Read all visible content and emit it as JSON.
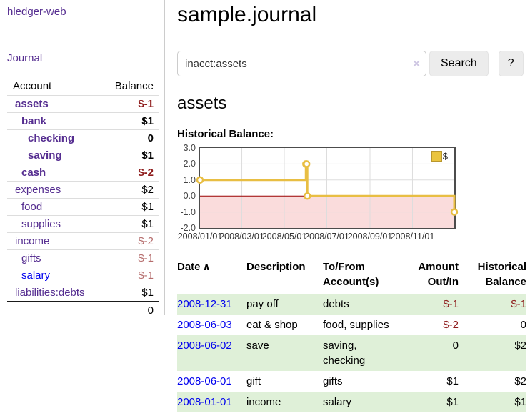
{
  "app": {
    "brand": "hledger-web",
    "nav": {
      "journal": "Journal"
    }
  },
  "sidebar": {
    "columns": {
      "account": "Account",
      "balance": "Balance"
    },
    "accounts": [
      {
        "name": "assets",
        "depth": 1,
        "bold": true,
        "balance": "$-1",
        "neg": "strong",
        "link": "purple"
      },
      {
        "name": "bank",
        "depth": 2,
        "bold": true,
        "balance": "$1",
        "neg": "",
        "link": "purple"
      },
      {
        "name": "checking",
        "depth": 3,
        "bold": true,
        "balance": "0",
        "neg": "",
        "link": "purple"
      },
      {
        "name": "saving",
        "depth": 3,
        "bold": true,
        "balance": "$1",
        "neg": "",
        "link": "purple"
      },
      {
        "name": "cash",
        "depth": 2,
        "bold": true,
        "balance": "$-2",
        "neg": "strong",
        "link": "purple"
      },
      {
        "name": "expenses",
        "depth": 1,
        "bold": false,
        "balance": "$2",
        "neg": "",
        "link": "purple"
      },
      {
        "name": "food",
        "depth": 2,
        "bold": false,
        "balance": "$1",
        "neg": "",
        "link": "purple"
      },
      {
        "name": "supplies",
        "depth": 2,
        "bold": false,
        "balance": "$1",
        "neg": "",
        "link": "purple"
      },
      {
        "name": "income",
        "depth": 1,
        "bold": false,
        "balance": "$-2",
        "neg": "muted",
        "link": "purple"
      },
      {
        "name": "gifts",
        "depth": 2,
        "bold": false,
        "balance": "$-1",
        "neg": "muted",
        "link": "purple"
      },
      {
        "name": "salary",
        "depth": 2,
        "bold": false,
        "balance": "$-1",
        "neg": "muted",
        "link": "blue"
      },
      {
        "name": "liabilities:debts",
        "depth": 1,
        "bold": false,
        "balance": "$1",
        "neg": "",
        "link": "purple"
      }
    ],
    "total": "0"
  },
  "main": {
    "title": "sample.journal",
    "search": {
      "value": "inacct:assets",
      "clear_icon": "×",
      "search_button": "Search",
      "help_button": "?"
    },
    "account_heading": "assets",
    "section_label": "Historical Balance:"
  },
  "chart_data": {
    "type": "line",
    "step": true,
    "title": "Historical Balance:",
    "series": [
      {
        "name": "$",
        "points": [
          [
            "2008-01-01",
            1
          ],
          [
            "2008-06-01",
            2
          ],
          [
            "2008-06-02",
            2
          ],
          [
            "2008-06-03",
            0
          ],
          [
            "2008-12-31",
            -1
          ]
        ]
      }
    ],
    "x_range": [
      "2008-01-01",
      "2008-12-31"
    ],
    "x_tick_dates": [
      "2008-01-01",
      "2008-03-01",
      "2008-05-01",
      "2008-07-01",
      "2008-09-01",
      "2008-11-01"
    ],
    "x_tick_labels": [
      "2008/01/01",
      "2008/03/01",
      "2008/05/01",
      "2008/07/01",
      "2008/09/01",
      "2008/11/01"
    ],
    "y_ticks": [
      3.0,
      2.0,
      1.0,
      0.0,
      -1.0,
      -2.0
    ],
    "y_tick_labels": [
      "3.0",
      "2.0",
      "1.0",
      "0.0",
      "-1.0",
      "-2.0"
    ],
    "ylim": [
      -2,
      3
    ],
    "legend": {
      "position": "top-right",
      "label": "$"
    },
    "colors": {
      "line": "#e8be43",
      "marker_fill": "#ffffff",
      "negative_region": "#fadcdc",
      "zero_line": "#990000",
      "grid": "#dddddd",
      "border": "#4c4c4c",
      "legend_swatch": "#eac43f",
      "legend_swatch_border": "#b8962e"
    }
  },
  "register": {
    "headers": [
      {
        "lines": [
          "Date"
        ],
        "sort_icon": "∧",
        "align": "left"
      },
      {
        "lines": [
          "Description"
        ],
        "align": "left"
      },
      {
        "lines": [
          "To/From",
          "Account(s)"
        ],
        "align": "left"
      },
      {
        "lines": [
          "Amount",
          "Out/In"
        ],
        "align": "right"
      },
      {
        "lines": [
          "Historical",
          "Balance"
        ],
        "align": "right"
      }
    ],
    "rows": [
      {
        "date": "2008-12-31",
        "description": "pay off",
        "accounts": "debts",
        "amount": "$-1",
        "amount_negative": true,
        "balance": "$-1",
        "balance_negative": true
      },
      {
        "date": "2008-06-03",
        "description": "eat & shop",
        "accounts": "food, supplies",
        "amount": "$-2",
        "amount_negative": true,
        "balance": "0",
        "balance_negative": false
      },
      {
        "date": "2008-06-02",
        "description": "save",
        "accounts": "saving, checking",
        "amount": "0",
        "amount_negative": false,
        "balance": "$2",
        "balance_negative": false
      },
      {
        "date": "2008-06-01",
        "description": "gift",
        "accounts": "gifts",
        "amount": "$1",
        "amount_negative": false,
        "balance": "$2",
        "balance_negative": false
      },
      {
        "date": "2008-01-01",
        "description": "income",
        "accounts": "salary",
        "amount": "$1",
        "amount_negative": false,
        "balance": "$1",
        "balance_negative": false
      }
    ]
  }
}
